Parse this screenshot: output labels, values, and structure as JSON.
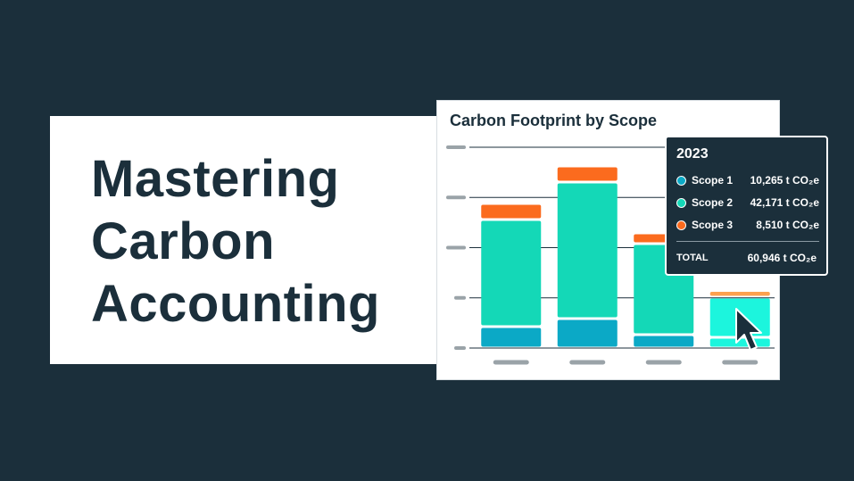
{
  "headline": {
    "lines": [
      "Mastering",
      "Carbon",
      "Accounting"
    ]
  },
  "chart_data": {
    "type": "bar",
    "stacked": true,
    "title": "Carbon Footprint by Scope",
    "categories": [
      "",
      "",
      "",
      ""
    ],
    "series": [
      {
        "name": "Scope 1",
        "color": "#0ba9c6",
        "values": [
          8,
          11,
          5,
          4
        ]
      },
      {
        "name": "Scope 2",
        "color": "#14d8b7",
        "values": [
          40,
          51,
          34,
          15
        ]
      },
      {
        "name": "Scope 3",
        "color": "#fb6b1e",
        "values": [
          6,
          6,
          4,
          2.5
        ]
      }
    ],
    "highlight_index": 3,
    "highlight_colors": {
      "Scope 1": "#1cf5dd",
      "Scope 2": "#1cf5dd",
      "Scope 3": "#fca14f"
    },
    "ylim": [
      0,
      75
    ],
    "grid": true,
    "tick_labels_visible": false
  },
  "tooltip": {
    "year": "2023",
    "rows": [
      {
        "label": "Scope 1",
        "value": "10,265 t CO₂e",
        "color": "#0ba9c6"
      },
      {
        "label": "Scope 2",
        "value": "42,171 t CO₂e",
        "color": "#14d8b7"
      },
      {
        "label": "Scope 3",
        "value": "8,510 t CO₂e",
        "color": "#fb6b1e"
      }
    ],
    "total_label": "TOTAL",
    "total_value": "60,946 t CO₂e"
  },
  "icons": {
    "cursor": "mouse-pointer-icon"
  },
  "colors": {
    "background": "#1b2f3b",
    "card": "#ffffff",
    "text_dark": "#1b2f3b"
  }
}
